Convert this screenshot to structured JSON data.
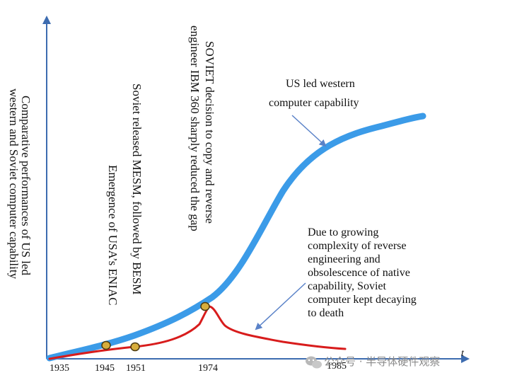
{
  "figure": {
    "y_axis_label_line1": "Comparative performances of US led",
    "y_axis_label_line2": "western and Soviet computer capability",
    "x_ticks": [
      "1935",
      "1945",
      "1951",
      "1974",
      "1985"
    ],
    "x_axis_end_marker": "t",
    "annotations": {
      "eniac": "Emergence of USA’s ENIAC",
      "mesm": "Soviet released MESM, followed by BESM",
      "ibm360_line1": "SOVIET decision to copy and reverse",
      "ibm360_line2": "engineer IBM 360 sharply reduced the gap",
      "us_line1": "US led western",
      "us_line2": "computer capability",
      "soviet_lines": [
        "Due to growing",
        "complexity of reverse",
        "engineering and",
        "obsolescence of native",
        "capability, Soviet",
        "computer kept decaying",
        "to death"
      ]
    },
    "colors": {
      "axis": "#3d6cb0",
      "us_curve": "#3b9be8",
      "soviet_curve": "#d81c1c",
      "marker_fill": "#d7ad3c",
      "marker_stroke": "#4a3a10",
      "arrow": "#5a82c8"
    },
    "watermark": "公众号 · 半导体硬件观察"
  }
}
